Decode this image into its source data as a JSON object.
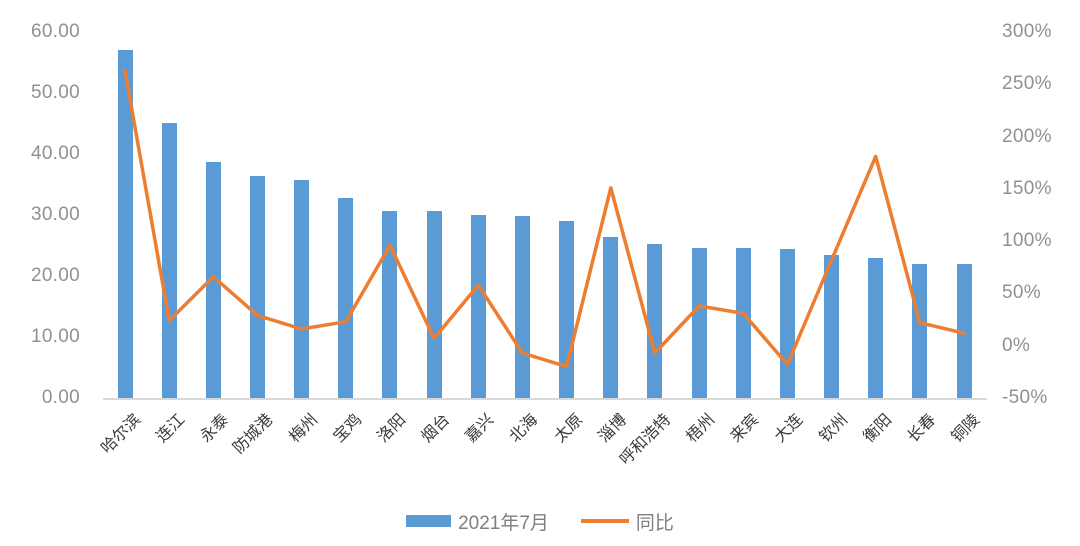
{
  "chart_data": {
    "type": "bar",
    "combo": "bar+line",
    "title": "",
    "grid": false,
    "legend_position": "bottom",
    "categories": [
      "哈尔滨",
      "连江",
      "永泰",
      "防城港",
      "梅州",
      "宝鸡",
      "洛阳",
      "烟台",
      "嘉兴",
      "北海",
      "太原",
      "淄博",
      "呼和浩特",
      "梧州",
      "来宾",
      "大连",
      "钦州",
      "衡阳",
      "长春",
      "铜陵"
    ],
    "series": [
      {
        "name": "2021年7月",
        "type": "bar",
        "axis": "left",
        "color": "#5B9BD5",
        "values": [
          57.0,
          45.1,
          38.7,
          36.4,
          35.7,
          32.8,
          30.7,
          30.6,
          30.0,
          29.9,
          29.0,
          26.4,
          25.3,
          24.6,
          24.6,
          24.4,
          23.4,
          23.0,
          21.9,
          21.9
        ]
      },
      {
        "name": "同比",
        "type": "line",
        "axis": "right",
        "color": "#ED7D31",
        "values": [
          263,
          24,
          66,
          29,
          16,
          23,
          96,
          7,
          58,
          -7,
          -20,
          151,
          -7,
          38,
          31,
          -18,
          82,
          181,
          22,
          12
        ]
      }
    ],
    "left_axis": {
      "min": 0,
      "max": 60,
      "tick_labels": [
        "60.00",
        "50.00",
        "40.00",
        "30.00",
        "20.00",
        "10.00",
        "0.00"
      ]
    },
    "right_axis": {
      "min": -50,
      "max": 300,
      "tick_labels": [
        "300%",
        "250%",
        "200%",
        "150%",
        "100%",
        "50%",
        "0%",
        "-50%"
      ]
    }
  },
  "colors": {
    "bar": "#5B9BD5",
    "line": "#ED7D31",
    "axis_text": "#909090",
    "category_text": "#3A3A3A",
    "legend_text": "#7F7F7F",
    "baseline": "#D9D9D9",
    "background": "#FFFFFF"
  }
}
